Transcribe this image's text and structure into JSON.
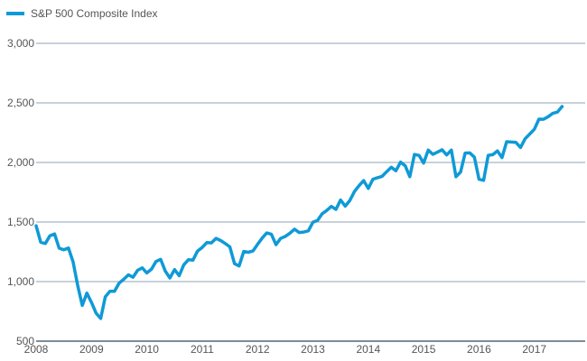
{
  "chart_data": {
    "type": "line",
    "title": "",
    "xlabel": "",
    "ylabel": "",
    "ylim": [
      500,
      3000
    ],
    "xlim": [
      "2008-01",
      "2017-08"
    ],
    "grid": "horizontal",
    "legend_position": "top-left",
    "y_ticks": [
      "500",
      "1,000",
      "1,500",
      "2,000",
      "2,500",
      "3,000"
    ],
    "y_tick_values": [
      500,
      1000,
      1500,
      2000,
      2500,
      3000
    ],
    "x_ticks": [
      "2008",
      "2009",
      "2010",
      "2011",
      "2012",
      "2013",
      "2014",
      "2015",
      "2016",
      "2017"
    ],
    "series": [
      {
        "name": "S&P 500 Composite Index",
        "color": "#0f9ad6",
        "x": [
          "2008-01",
          "2008-02",
          "2008-03",
          "2008-04",
          "2008-05",
          "2008-06",
          "2008-07",
          "2008-08",
          "2008-09",
          "2008-10",
          "2008-11",
          "2008-12",
          "2009-01",
          "2009-02",
          "2009-03",
          "2009-04",
          "2009-05",
          "2009-06",
          "2009-07",
          "2009-08",
          "2009-09",
          "2009-10",
          "2009-11",
          "2009-12",
          "2010-01",
          "2010-02",
          "2010-03",
          "2010-04",
          "2010-05",
          "2010-06",
          "2010-07",
          "2010-08",
          "2010-09",
          "2010-10",
          "2010-11",
          "2010-12",
          "2011-01",
          "2011-02",
          "2011-03",
          "2011-04",
          "2011-05",
          "2011-06",
          "2011-07",
          "2011-08",
          "2011-09",
          "2011-10",
          "2011-11",
          "2011-12",
          "2012-01",
          "2012-02",
          "2012-03",
          "2012-04",
          "2012-05",
          "2012-06",
          "2012-07",
          "2012-08",
          "2012-09",
          "2012-10",
          "2012-11",
          "2012-12",
          "2013-01",
          "2013-02",
          "2013-03",
          "2013-04",
          "2013-05",
          "2013-06",
          "2013-07",
          "2013-08",
          "2013-09",
          "2013-10",
          "2013-11",
          "2013-12",
          "2014-01",
          "2014-02",
          "2014-03",
          "2014-04",
          "2014-05",
          "2014-06",
          "2014-07",
          "2014-08",
          "2014-09",
          "2014-10",
          "2014-11",
          "2014-12",
          "2015-01",
          "2015-02",
          "2015-03",
          "2015-04",
          "2015-05",
          "2015-06",
          "2015-07",
          "2015-08",
          "2015-09",
          "2015-10",
          "2015-11",
          "2015-12",
          "2016-01",
          "2016-02",
          "2016-03",
          "2016-04",
          "2016-05",
          "2016-06",
          "2016-07",
          "2016-08",
          "2016-09",
          "2016-10",
          "2016-11",
          "2016-12",
          "2017-01",
          "2017-02",
          "2017-03",
          "2017-04",
          "2017-05",
          "2017-06",
          "2017-07"
        ],
        "values": [
          1468,
          1330,
          1320,
          1385,
          1400,
          1280,
          1267,
          1282,
          1166,
          968,
          800,
          903,
          825,
          735,
          690,
          872,
          919,
          919,
          987,
          1020,
          1057,
          1036,
          1095,
          1115,
          1073,
          1104,
          1169,
          1186,
          1089,
          1030,
          1101,
          1049,
          1141,
          1183,
          1180,
          1257,
          1286,
          1327,
          1325,
          1363,
          1345,
          1320,
          1292,
          1150,
          1131,
          1253,
          1246,
          1257,
          1312,
          1365,
          1408,
          1397,
          1310,
          1362,
          1379,
          1406,
          1440,
          1412,
          1416,
          1426,
          1498,
          1514,
          1569,
          1597,
          1631,
          1606,
          1685,
          1633,
          1681,
          1756,
          1805,
          1848,
          1782,
          1859,
          1872,
          1883,
          1923,
          1960,
          1930,
          2003,
          1972,
          1880,
          2067,
          2059,
          1995,
          2104,
          2068,
          2086,
          2107,
          2063,
          2104,
          1880,
          1920,
          2079,
          2080,
          2044,
          1860,
          1850,
          2060,
          2065,
          2097,
          2040,
          2174,
          2171,
          2168,
          2126,
          2199,
          2239,
          2279,
          2364,
          2363,
          2384,
          2412,
          2423,
          2470
        ]
      }
    ]
  }
}
